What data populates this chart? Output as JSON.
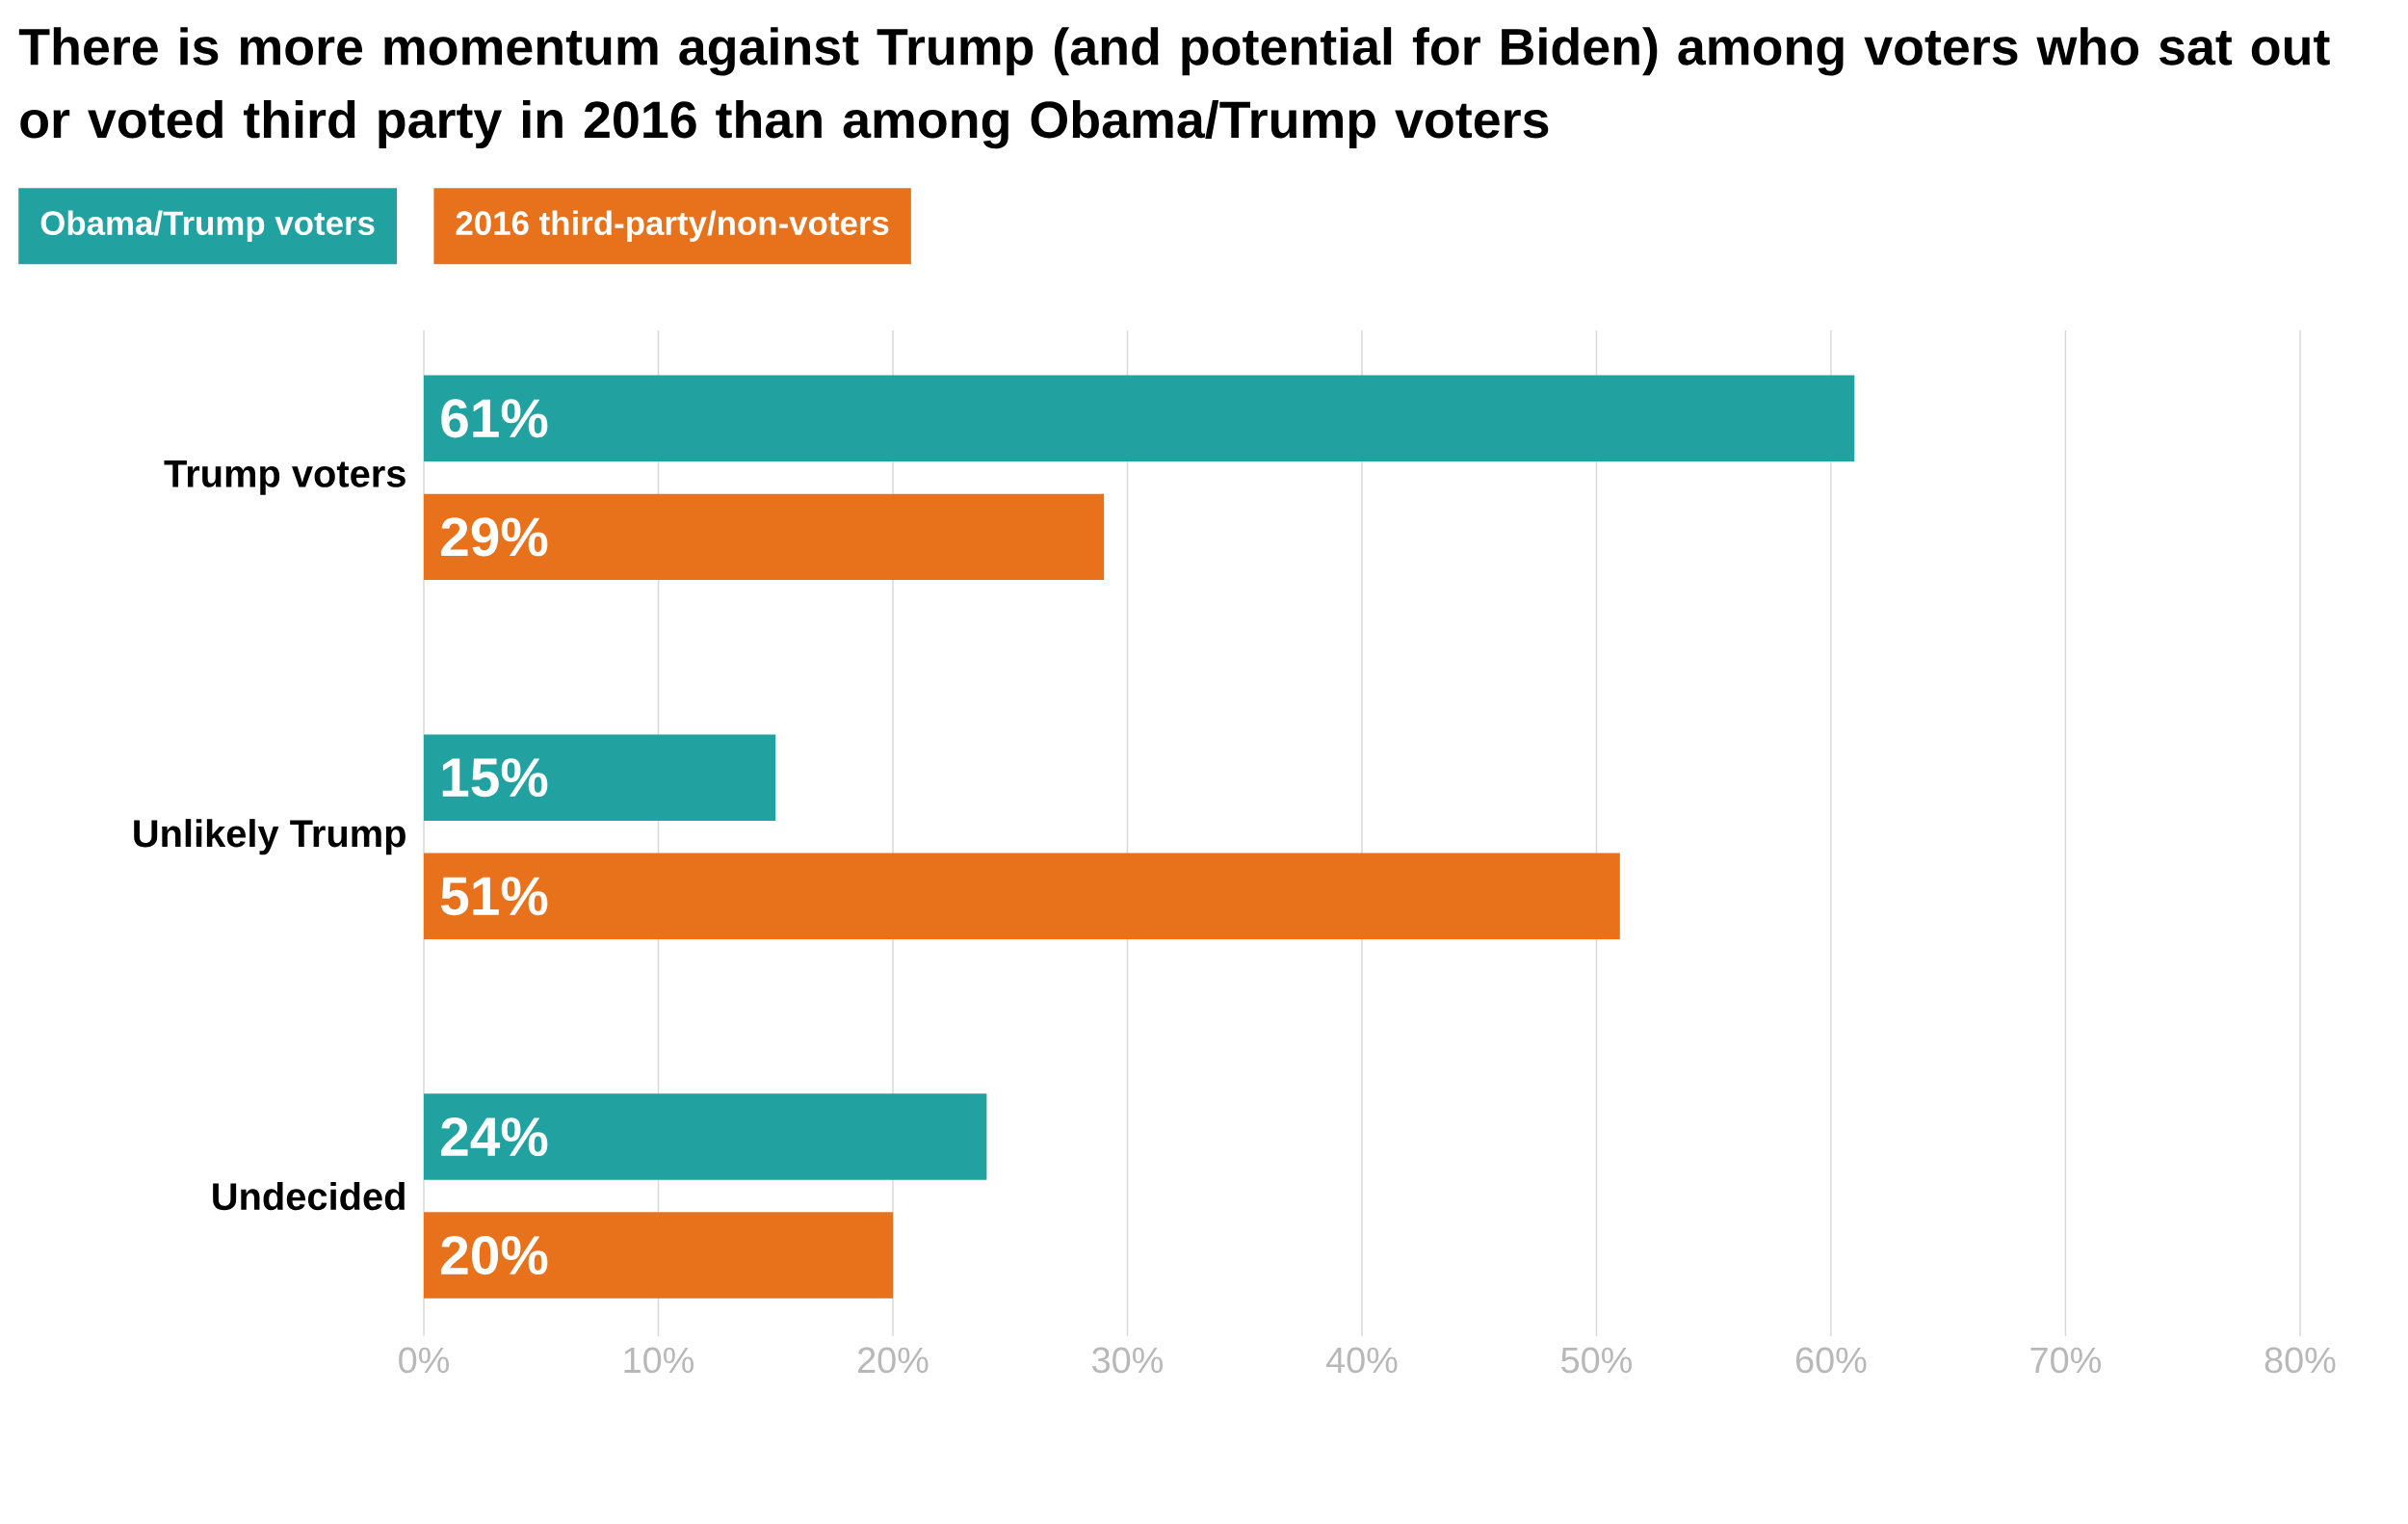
{
  "chart_data": {
    "type": "bar",
    "orientation": "horizontal",
    "title": "There is more momentum against Trump (and potential for Biden) among voters who sat out or voted third party in 2016 than among Obama/Trump voters",
    "categories": [
      "Trump voters",
      "Unlikely Trump",
      "Undecided"
    ],
    "series": [
      {
        "name": "Obama/Trump voters",
        "color": "#21a19f",
        "values": [
          61,
          15,
          24
        ],
        "value_labels": [
          "61%",
          "15%",
          "24%"
        ]
      },
      {
        "name": "2016 third-party/non-voters",
        "color": "#e8711c",
        "values": [
          29,
          51,
          20
        ],
        "value_labels": [
          "29%",
          "51%",
          "20%"
        ]
      }
    ],
    "xlim": [
      0,
      80
    ],
    "xticks": [
      {
        "value": 0,
        "label": "0%"
      },
      {
        "value": 10,
        "label": "10%"
      },
      {
        "value": 20,
        "label": "20%"
      },
      {
        "value": 30,
        "label": "30%"
      },
      {
        "value": 40,
        "label": "40%"
      },
      {
        "value": 50,
        "label": "50%"
      },
      {
        "value": 60,
        "label": "60%"
      },
      {
        "value": 70,
        "label": "70%"
      },
      {
        "value": 80,
        "label": "80%"
      }
    ],
    "grid": "x",
    "legend": "top left"
  }
}
